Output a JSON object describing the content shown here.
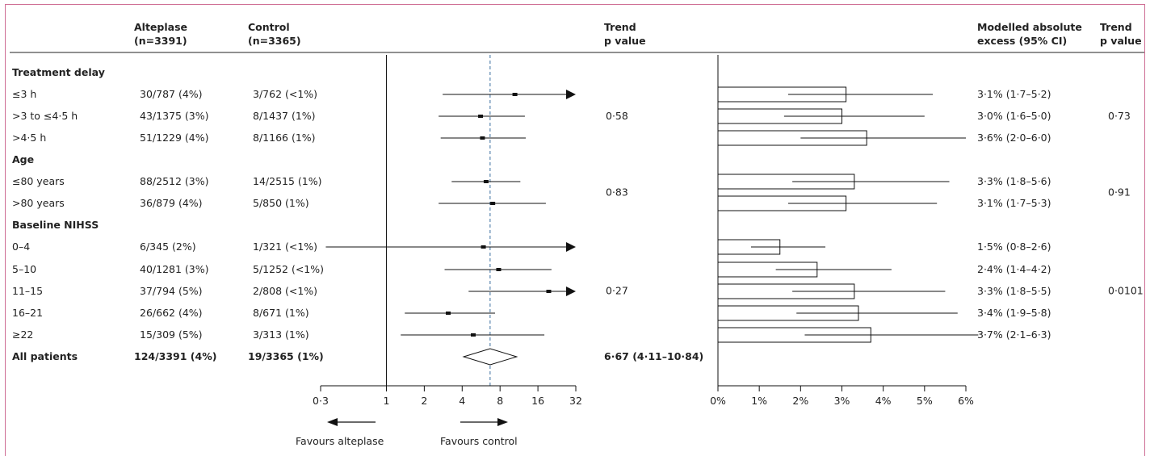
{
  "headers": {
    "alteplase": [
      "Alteplase",
      "(n=3391)"
    ],
    "control": [
      "Control",
      "(n=3365)"
    ],
    "trend1": [
      "Trend",
      "p value"
    ],
    "modelled": [
      "Modelled absolute",
      "excess (95% CI)"
    ],
    "trend2": [
      "Trend",
      "p value"
    ]
  },
  "sections": [
    {
      "label": "Treatment delay",
      "rows": [
        0,
        1,
        2
      ]
    },
    {
      "label": "Age",
      "rows": [
        3,
        4
      ]
    },
    {
      "label": "Baseline NIHSS",
      "rows": [
        5,
        6,
        7,
        8,
        9
      ]
    }
  ],
  "rows": [
    {
      "label": "≤3 h",
      "alteplase": "30/787 (4%)",
      "control": "3/762 (<1%)",
      "excess": "3·1% (1·7–5·2)"
    },
    {
      "label": ">3 to ≤4·5 h",
      "alteplase": "43/1375 (3%)",
      "control": "8/1437 (1%)",
      "excess": "3·0% (1·6–5·0)"
    },
    {
      "label": ">4·5 h",
      "alteplase": "51/1229 (4%)",
      "control": "8/1166 (1%)",
      "excess": "3·6% (2·0–6·0)"
    },
    {
      "label": "≤80 years",
      "alteplase": "88/2512 (3%)",
      "control": "14/2515 (1%)",
      "excess": "3·3% (1·8–5·6)"
    },
    {
      "label": ">80 years",
      "alteplase": "36/879 (4%)",
      "control": "5/850 (1%)",
      "excess": "3·1% (1·7–5·3)"
    },
    {
      "label": "0–4",
      "alteplase": "6/345 (2%)",
      "control": "1/321 (<1%)",
      "excess": "1·5% (0·8–2·6)"
    },
    {
      "label": "5–10",
      "alteplase": "40/1281 (3%)",
      "control": "5/1252 (<1%)",
      "excess": "2·4% (1·4–4·2)"
    },
    {
      "label": "11–15",
      "alteplase": "37/794 (5%)",
      "control": "2/808 (<1%)",
      "excess": "3·3% (1·8–5·5)"
    },
    {
      "label": "16–21",
      "alteplase": "26/662 (4%)",
      "control": "8/671 (1%)",
      "excess": "3·4% (1·9–5·8)"
    },
    {
      "label": "≥22",
      "alteplase": "15/309 (5%)",
      "control": "3/313 (1%)",
      "excess": "3·7% (2·1–6·3)"
    }
  ],
  "total": {
    "label": "All patients",
    "alteplase": "124/3391 (4%)",
    "control": "19/3365 (1%)",
    "estimate": "6·67 (4·11–10·84)"
  },
  "trend_p": [
    {
      "value": "0·58",
      "rows": [
        0,
        1,
        2
      ]
    },
    {
      "value": "0·83",
      "rows": [
        3,
        4
      ]
    },
    {
      "value": "0·27",
      "rows": [
        5,
        6,
        7,
        8,
        9
      ]
    }
  ],
  "trend_p_excess": [
    {
      "value": "0·73",
      "rows": [
        0,
        1,
        2
      ]
    },
    {
      "value": "0·91",
      "rows": [
        3,
        4
      ]
    },
    {
      "value": "0·0101",
      "rows": [
        5,
        6,
        7,
        8,
        9
      ]
    }
  ],
  "legend": {
    "favours_alteplase": "Favours alteplase",
    "favours_control": "Favours control"
  },
  "colors": {
    "frame": "#cf6f95",
    "reference_line": "#3b6f9e",
    "ink": "#111111"
  },
  "chart_data": [
    {
      "type": "forest",
      "x_scale": "log",
      "xlim": [
        0.3,
        32
      ],
      "ticks": [
        0.3,
        1,
        2,
        4,
        8,
        16,
        32
      ],
      "tick_labels": [
        "0·3",
        "1",
        "2",
        "4",
        "8",
        "16",
        "32"
      ],
      "reference_value": 1,
      "overall_line_value": 6.67,
      "rows": [
        {
          "estimate": 10.5,
          "low": 2.8,
          "high": 32,
          "arrow_right": true
        },
        {
          "estimate": 5.6,
          "low": 2.6,
          "high": 12.6,
          "arrow_right": false
        },
        {
          "estimate": 5.8,
          "low": 2.7,
          "high": 12.8,
          "arrow_right": false
        },
        {
          "estimate": 6.2,
          "low": 3.3,
          "high": 11.6,
          "arrow_right": false
        },
        {
          "estimate": 7.0,
          "low": 2.6,
          "high": 18.5,
          "arrow_right": false
        },
        {
          "estimate": 5.9,
          "low": 0.33,
          "high": 32,
          "arrow_right": true
        },
        {
          "estimate": 7.8,
          "low": 2.9,
          "high": 20.5,
          "arrow_right": false
        },
        {
          "estimate": 19.5,
          "low": 4.5,
          "high": 32,
          "arrow_right": true
        },
        {
          "estimate": 3.1,
          "low": 1.4,
          "high": 7.3,
          "arrow_right": false
        },
        {
          "estimate": 4.9,
          "low": 1.3,
          "high": 18.0,
          "arrow_right": false
        }
      ],
      "overall": {
        "estimate": 6.67,
        "low": 4.11,
        "high": 10.84
      }
    },
    {
      "type": "bar",
      "orientation": "horizontal",
      "xlim": [
        0,
        6
      ],
      "ticks": [
        0,
        1,
        2,
        3,
        4,
        5,
        6
      ],
      "tick_labels": [
        "0%",
        "1%",
        "2%",
        "3%",
        "4%",
        "5%",
        "6%"
      ],
      "values": [
        3.1,
        3.0,
        3.6,
        3.3,
        3.1,
        1.5,
        2.4,
        3.3,
        3.4,
        3.7
      ],
      "ci_low": [
        1.7,
        1.6,
        2.0,
        1.8,
        1.7,
        0.8,
        1.4,
        1.8,
        1.9,
        2.1
      ],
      "ci_high": [
        5.2,
        5.0,
        6.0,
        5.6,
        5.3,
        2.6,
        4.2,
        5.5,
        5.8,
        6.3
      ]
    }
  ]
}
